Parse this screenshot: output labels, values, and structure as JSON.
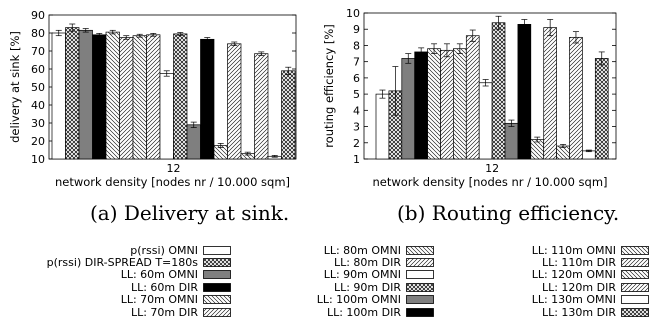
{
  "colors": {
    "ink": "#000000",
    "paper": "#ffffff"
  },
  "series_styles": [
    {
      "name": "p(rssi) OMNI",
      "style": "white"
    },
    {
      "name": "p(rssi) DIR-SPREAD T=180s",
      "style": "crosshatch"
    },
    {
      "name": "LL: 60m OMNI",
      "style": "gray"
    },
    {
      "name": "LL: 60m DIR",
      "style": "black"
    },
    {
      "name": "LL: 70m OMNI",
      "style": "back-diag"
    },
    {
      "name": "LL: 70m DIR",
      "style": "fwd-diag"
    },
    {
      "name": "LL: 80m OMNI",
      "style": "back-diag"
    },
    {
      "name": "LL: 80m DIR",
      "style": "fwd-diag"
    },
    {
      "name": "LL: 90m OMNI",
      "style": "white"
    },
    {
      "name": "LL: 90m DIR",
      "style": "crosshatch"
    },
    {
      "name": "LL: 100m OMNI",
      "style": "gray"
    },
    {
      "name": "LL: 100m DIR",
      "style": "black"
    },
    {
      "name": "LL: 110m OMNI",
      "style": "back-diag"
    },
    {
      "name": "LL: 110m DIR",
      "style": "fwd-diag"
    },
    {
      "name": "LL: 120m OMNI",
      "style": "back-diag"
    },
    {
      "name": "LL: 120m DIR",
      "style": "fwd-diag"
    },
    {
      "name": "LL: 130m OMNI",
      "style": "white"
    },
    {
      "name": "LL: 130m DIR",
      "style": "crosshatch"
    }
  ],
  "legend_columns": [
    [
      "p(rssi) OMNI",
      "p(rssi) DIR-SPREAD T=180s",
      "LL: 60m OMNI",
      "LL: 60m DIR",
      "LL: 70m OMNI",
      "LL: 70m DIR"
    ],
    [
      "LL: 80m OMNI",
      "LL: 80m DIR",
      "LL: 90m OMNI",
      "LL: 90m DIR",
      "LL: 100m OMNI",
      "LL: 100m DIR"
    ],
    [
      "LL: 110m OMNI",
      "LL: 110m DIR",
      "LL: 120m OMNI",
      "LL: 120m DIR",
      "LL: 130m OMNI",
      "LL: 130m DIR"
    ]
  ],
  "captions": [
    "(a) Delivery at sink.",
    "(b) Routing efficiency."
  ],
  "chart_data": [
    {
      "type": "bar",
      "categories": [
        "12"
      ],
      "title": "",
      "xlabel": "network density [nodes nr / 10.000 sqm]",
      "ylabel": "delivery at sink [%]",
      "ylim": [
        10,
        90
      ],
      "yticks": [
        10,
        20,
        30,
        40,
        50,
        60,
        70,
        80,
        90
      ],
      "error_bars": true,
      "series": [
        {
          "name": "p(rssi) OMNI",
          "values": [
            80
          ],
          "error": [
            1.5
          ]
        },
        {
          "name": "p(rssi) DIR-SPREAD T=180s",
          "values": [
            83
          ],
          "error": [
            2
          ]
        },
        {
          "name": "LL: 60m OMNI",
          "values": [
            81.5
          ],
          "error": [
            1
          ]
        },
        {
          "name": "LL: 60m DIR",
          "values": [
            79
          ],
          "error": [
            0.8
          ]
        },
        {
          "name": "LL: 70m OMNI",
          "values": [
            80.5
          ],
          "error": [
            1
          ]
        },
        {
          "name": "LL: 70m DIR",
          "values": [
            77.5
          ],
          "error": [
            1
          ]
        },
        {
          "name": "LL: 80m OMNI",
          "values": [
            78.5
          ],
          "error": [
            0.8
          ]
        },
        {
          "name": "LL: 80m DIR",
          "values": [
            79
          ],
          "error": [
            0.8
          ]
        },
        {
          "name": "LL: 90m OMNI",
          "values": [
            57.5
          ],
          "error": [
            1.5
          ]
        },
        {
          "name": "LL: 90m DIR",
          "values": [
            79.5
          ],
          "error": [
            0.8
          ]
        },
        {
          "name": "LL: 100m OMNI",
          "values": [
            29
          ],
          "error": [
            1.5
          ]
        },
        {
          "name": "LL: 100m DIR",
          "values": [
            76.5
          ],
          "error": [
            1
          ]
        },
        {
          "name": "LL: 110m OMNI",
          "values": [
            17.5
          ],
          "error": [
            1.2
          ]
        },
        {
          "name": "LL: 110m DIR",
          "values": [
            74
          ],
          "error": [
            1
          ]
        },
        {
          "name": "LL: 120m OMNI",
          "values": [
            13
          ],
          "error": [
            0.8
          ]
        },
        {
          "name": "LL: 120m DIR",
          "values": [
            68.5
          ],
          "error": [
            1
          ]
        },
        {
          "name": "LL: 130m OMNI",
          "values": [
            11.5
          ],
          "error": [
            0.5
          ]
        },
        {
          "name": "LL: 130m DIR",
          "values": [
            59
          ],
          "error": [
            2
          ]
        }
      ]
    },
    {
      "type": "bar",
      "categories": [
        "12"
      ],
      "title": "",
      "xlabel": "network density [nodes nr / 10.000 sqm]",
      "ylabel": "routing efficiency [%]",
      "ylim": [
        1,
        10
      ],
      "yticks": [
        1,
        2,
        3,
        4,
        5,
        6,
        7,
        8,
        9,
        10
      ],
      "error_bars": true,
      "series": [
        {
          "name": "p(rssi) OMNI",
          "values": [
            5
          ],
          "error": [
            0.25
          ]
        },
        {
          "name": "p(rssi) DIR-SPREAD T=180s",
          "values": [
            5.2
          ],
          "error": [
            1.5
          ]
        },
        {
          "name": "LL: 60m OMNI",
          "values": [
            7.2
          ],
          "error": [
            0.3
          ]
        },
        {
          "name": "LL: 60m DIR",
          "values": [
            7.6
          ],
          "error": [
            0.25
          ]
        },
        {
          "name": "LL: 70m OMNI",
          "values": [
            7.8
          ],
          "error": [
            0.3
          ]
        },
        {
          "name": "LL: 70m DIR",
          "values": [
            7.7
          ],
          "error": [
            0.4
          ]
        },
        {
          "name": "LL: 80m OMNI",
          "values": [
            7.8
          ],
          "error": [
            0.3
          ]
        },
        {
          "name": "LL: 80m DIR",
          "values": [
            8.6
          ],
          "error": [
            0.35
          ]
        },
        {
          "name": "LL: 90m OMNI",
          "values": [
            5.7
          ],
          "error": [
            0.2
          ]
        },
        {
          "name": "LL: 90m DIR",
          "values": [
            9.4
          ],
          "error": [
            0.4
          ]
        },
        {
          "name": "LL: 100m OMNI",
          "values": [
            3.2
          ],
          "error": [
            0.2
          ]
        },
        {
          "name": "LL: 100m DIR",
          "values": [
            9.3
          ],
          "error": [
            0.3
          ]
        },
        {
          "name": "LL: 110m OMNI",
          "values": [
            2.2
          ],
          "error": [
            0.15
          ]
        },
        {
          "name": "LL: 110m DIR",
          "values": [
            9.1
          ],
          "error": [
            0.5
          ]
        },
        {
          "name": "LL: 120m OMNI",
          "values": [
            1.8
          ],
          "error": [
            0.1
          ]
        },
        {
          "name": "LL: 120m DIR",
          "values": [
            8.5
          ],
          "error": [
            0.35
          ]
        },
        {
          "name": "LL: 130m OMNI",
          "values": [
            1.5
          ],
          "error": [
            0.05
          ]
        },
        {
          "name": "LL: 130m DIR",
          "values": [
            7.2
          ],
          "error": [
            0.4
          ]
        }
      ]
    }
  ]
}
